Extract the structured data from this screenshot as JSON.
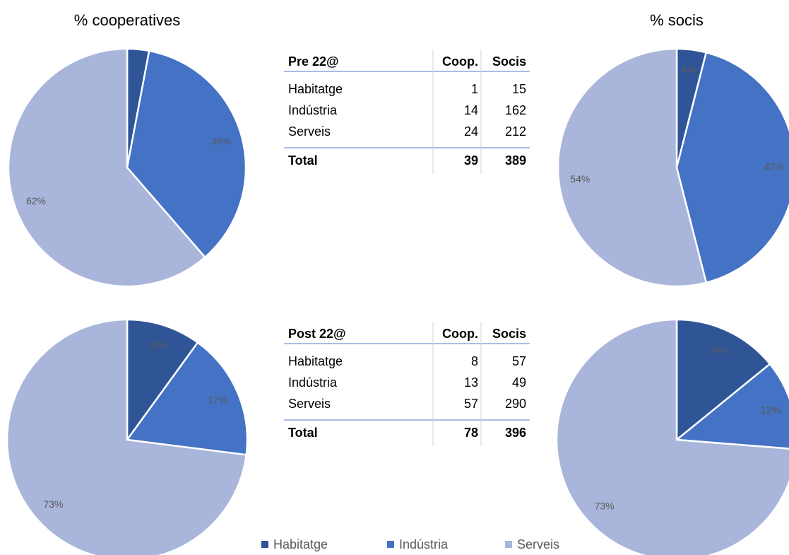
{
  "chart_data": [
    {
      "type": "pie",
      "title": "% cooperatives",
      "categories": [
        "Habitatge",
        "Indústria",
        "Serveis"
      ],
      "values": [
        3,
        36,
        62
      ],
      "value_labels": [
        null,
        "36%",
        "62%"
      ],
      "colors": [
        "#2f5597",
        "#4472c4",
        "#a9b5da"
      ]
    },
    {
      "type": "pie",
      "title": "% socis",
      "categories": [
        "Habitatge",
        "Indústria",
        "Serveis"
      ],
      "values": [
        4,
        42,
        54
      ],
      "value_labels": [
        "4%",
        "42%",
        "54%"
      ],
      "colors": [
        "#2f5597",
        "#4472c4",
        "#a9b5da"
      ]
    },
    {
      "type": "pie",
      "categories": [
        "Habitatge",
        "Indústria",
        "Serveis"
      ],
      "values": [
        10,
        17,
        73
      ],
      "value_labels": [
        "10%",
        "17%",
        "73%"
      ],
      "colors": [
        "#2f5597",
        "#4472c4",
        "#a9b5da"
      ]
    },
    {
      "type": "pie",
      "categories": [
        "Habitatge",
        "Indústria",
        "Serveis"
      ],
      "values": [
        14,
        12,
        73
      ],
      "value_labels": [
        "14%",
        "12%",
        "73%"
      ],
      "colors": [
        "#2f5597",
        "#4472c4",
        "#a9b5da"
      ]
    }
  ],
  "tables": [
    {
      "header": [
        "Pre 22@",
        "Coop.",
        "Socis"
      ],
      "rows": [
        [
          "Habitatge",
          1,
          15
        ],
        [
          "Indústria",
          14,
          162
        ],
        [
          "Serveis",
          24,
          212
        ]
      ],
      "total": [
        "Total",
        39,
        389
      ]
    },
    {
      "header": [
        "Post 22@",
        "Coop.",
        "Socis"
      ],
      "rows": [
        [
          "Habitatge",
          8,
          57
        ],
        [
          "Indústria",
          13,
          49
        ],
        [
          "Serveis",
          57,
          290
        ]
      ],
      "total": [
        "Total",
        78,
        396
      ]
    }
  ]
}
